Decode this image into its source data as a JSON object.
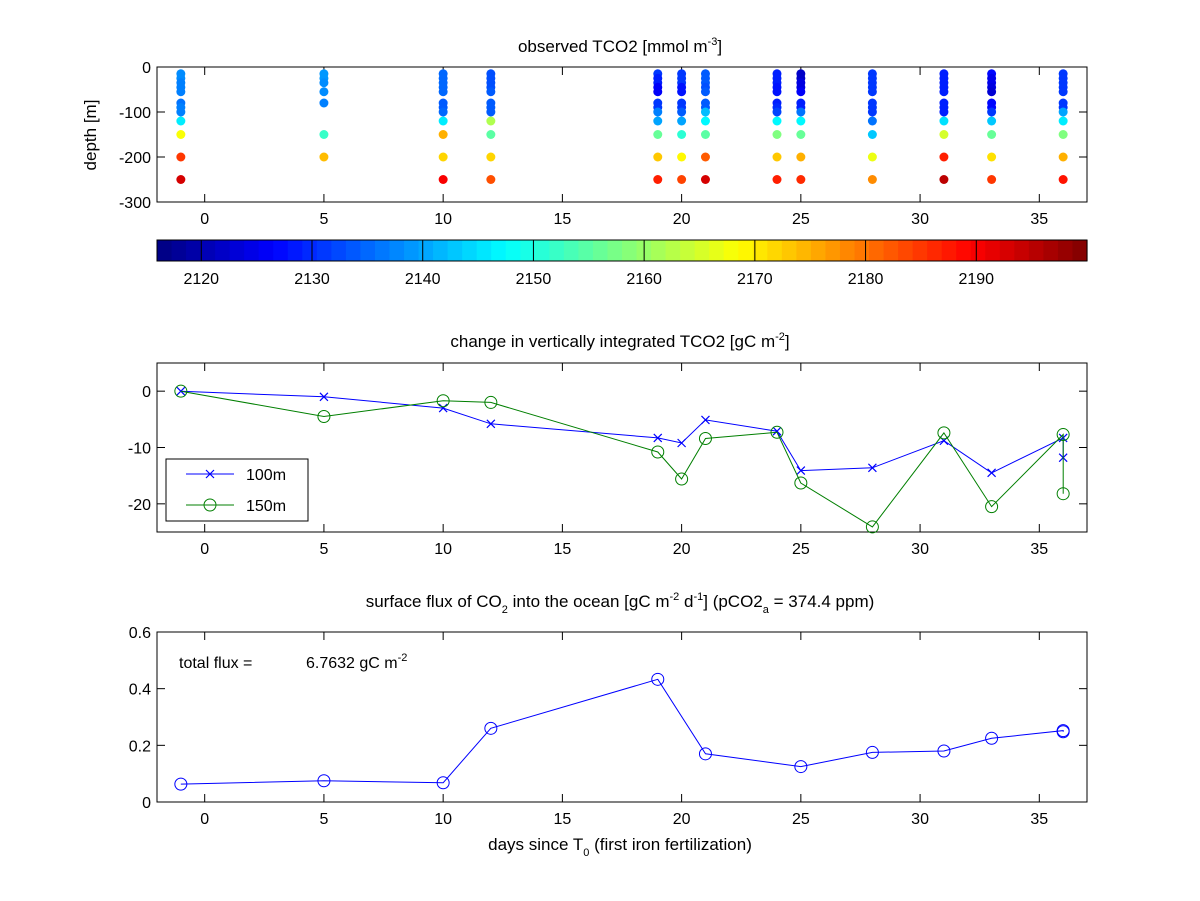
{
  "chart_data": [
    {
      "id": "panel1",
      "type": "scatter",
      "title": "observed TCO2 [mmol m-3]",
      "title_parts": {
        "main": "observed TCO2 [mmol m",
        "sup": "-3",
        "tail": "]"
      },
      "ylabel": "depth [m]",
      "xlabel": "",
      "xlim": [
        -2,
        37
      ],
      "ylim": [
        -300,
        0
      ],
      "xticks": [
        0,
        5,
        10,
        15,
        20,
        25,
        30,
        35
      ],
      "yticks": [
        0,
        -100,
        -200,
        -300
      ],
      "colormap": "jet",
      "color_range": [
        2116,
        2200
      ],
      "colorbar_ticks": [
        2120,
        2130,
        2140,
        2150,
        2160,
        2170,
        2180,
        2190
      ],
      "depths": [
        -15,
        -25,
        -35,
        -45,
        -55,
        -80,
        -90,
        -100,
        -120,
        -150,
        -200,
        -250
      ],
      "profiles": [
        {
          "day": -1,
          "values": [
            2138,
            2138,
            2137,
            2137,
            2137,
            2136,
            2137,
            2137,
            2146,
            2168,
            2185,
            2193
          ]
        },
        {
          "day": 5,
          "values": [
            2139,
            2139,
            2138,
            null,
            2138,
            2137,
            null,
            null,
            null,
            2152,
            2174,
            null
          ]
        },
        {
          "day": 10,
          "values": [
            2135,
            2135,
            2135,
            2135,
            2135,
            2134,
            2134,
            2135,
            2146,
            2175,
            2172,
            2190
          ]
        },
        {
          "day": 12,
          "values": [
            2133,
            2133,
            2133,
            2133,
            2134,
            2134,
            2134,
            2134,
            2162,
            2155,
            2172,
            2183
          ]
        },
        {
          "day": 19,
          "values": [
            2131,
            2129,
            2129,
            2126,
            2126,
            2131,
            2131,
            2137,
            2140,
            2156,
            2173,
            2187
          ]
        },
        {
          "day": 20,
          "values": [
            2131,
            2131,
            2131,
            2128,
            2128,
            2131,
            2131,
            2134,
            2140,
            2151,
            2169,
            2184
          ]
        },
        {
          "day": 21,
          "values": [
            2134,
            2134,
            2134,
            2133,
            2134,
            2134,
            2134,
            2142,
            2147,
            2155,
            2182,
            2193
          ]
        },
        {
          "day": 24,
          "values": [
            2129,
            2129,
            2129,
            2128,
            2128,
            2129,
            2130,
            2132,
            2147,
            2158,
            2173,
            2187
          ]
        },
        {
          "day": 25,
          "values": [
            2122,
            2122,
            2124,
            2124,
            2126,
            2129,
            2129,
            2136,
            2147,
            2156,
            2175,
            2186
          ]
        },
        {
          "day": 28,
          "values": [
            2131,
            2131,
            2131,
            2131,
            2131,
            2131,
            2131,
            2131,
            2136,
            2143,
            2167,
            2178
          ]
        },
        {
          "day": 31,
          "values": [
            2129,
            2129,
            2129,
            2129,
            2129,
            2129,
            2129,
            2129,
            2145,
            2165,
            2187,
            2195
          ]
        },
        {
          "day": 33,
          "values": [
            2127,
            2125,
            2125,
            2124,
            2123,
            2127,
            2127,
            2131,
            2143,
            2156,
            2171,
            2185
          ]
        },
        {
          "day": 36,
          "values": [
            2131,
            2131,
            2131,
            2131,
            2131,
            2131,
            2131,
            2140,
            2146,
            2158,
            2175,
            2188
          ]
        }
      ]
    },
    {
      "id": "panel2",
      "type": "line",
      "title": "change in vertically integrated TCO2 [gC m-2]",
      "title_parts": {
        "main": "change in vertically integrated TCO2 [gC m",
        "sup": "-2",
        "tail": "]"
      },
      "xlabel": "",
      "ylabel": "",
      "xlim": [
        -2,
        37
      ],
      "ylim": [
        -25,
        5
      ],
      "xticks": [
        0,
        5,
        10,
        15,
        20,
        25,
        30,
        35
      ],
      "yticks": [
        0,
        -10,
        -20
      ],
      "legend_position": "bottom-left",
      "series": [
        {
          "name": "100m",
          "color": "#0000ff",
          "marker": "x",
          "x": [
            -1,
            5,
            10,
            12,
            19,
            20,
            21,
            24,
            25,
            28,
            31,
            33,
            36,
            36
          ],
          "y": [
            0,
            -1,
            -3,
            -5.8,
            -8.3,
            -9.2,
            -5.1,
            -7.1,
            -14.1,
            -13.6,
            -8.8,
            -14.5,
            -8.3,
            -11.8
          ]
        },
        {
          "name": "150m",
          "color": "#007f00",
          "marker": "o",
          "x": [
            -1,
            5,
            10,
            12,
            19,
            20,
            21,
            24,
            25,
            28,
            31,
            33,
            36,
            36
          ],
          "y": [
            0,
            -4.5,
            -1.7,
            -2,
            -10.8,
            -15.6,
            -8.4,
            -7.3,
            -16.3,
            -24.1,
            -7.4,
            -20.5,
            -7.7,
            -18.2
          ]
        }
      ]
    },
    {
      "id": "panel3",
      "type": "line",
      "title": "surface flux of CO2 into the ocean [gC m-2 d-1] (pCO2a = 374.4 ppm)",
      "title_parts": {
        "t1": "surface flux of CO",
        "sub1": "2",
        "t2": " into the ocean [gC m",
        "sup1": "-2",
        "t3": " d",
        "sup2": "-1",
        "t4": "] (pCO2",
        "sub2": "a",
        "t5": " = 374.4 ppm)"
      },
      "xlabel": "days since T0 (first iron fertilization)",
      "xlabel_parts": {
        "main": "days since T",
        "sub": "0",
        "tail": " (first iron fertilization)"
      },
      "ylabel": "",
      "xlim": [
        -2,
        37
      ],
      "ylim": [
        0,
        0.6
      ],
      "xticks": [
        0,
        5,
        10,
        15,
        20,
        25,
        30,
        35
      ],
      "yticks": [
        0,
        0.2,
        0.4,
        0.6
      ],
      "annotation": {
        "label": "total flux =",
        "value": "6.7632 gC m",
        "sup": "-2"
      },
      "series": [
        {
          "color": "#0000ff",
          "marker": "o",
          "x": [
            -1,
            5,
            10,
            12,
            19,
            21,
            25,
            28,
            31,
            33,
            36,
            36
          ],
          "y": [
            0.063,
            0.075,
            0.068,
            0.26,
            0.433,
            0.17,
            0.125,
            0.175,
            0.18,
            0.225,
            0.252,
            0.248
          ]
        }
      ]
    }
  ]
}
